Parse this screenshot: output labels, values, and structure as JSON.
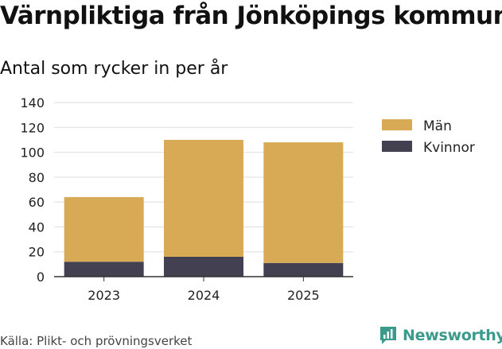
{
  "header": {
    "title": "Värnpliktiga från Jönköpings kommun",
    "subtitle": "Antal som rycker in per år"
  },
  "footer": {
    "source": "Källa: Plikt- och prövningsverket",
    "brand": "Newsworthy"
  },
  "colors": {
    "man": "#d9aa56",
    "kvinnor": "#434052",
    "grid": "#dedede",
    "axis": "#333333",
    "brand": "#3a9a8c"
  },
  "chart_data": {
    "type": "bar",
    "stacked": true,
    "categories": [
      "2023",
      "2024",
      "2025"
    ],
    "series": [
      {
        "name": "Kvinnor",
        "values": [
          12,
          16,
          11
        ]
      },
      {
        "name": "Män",
        "values": [
          52,
          94,
          97
        ]
      }
    ],
    "ylim": [
      0,
      140
    ],
    "yticks": [
      "0",
      "20",
      "40",
      "60",
      "80",
      "100",
      "120",
      "140"
    ],
    "grid": true,
    "legend": {
      "position": "right",
      "items": [
        "Män",
        "Kvinnor"
      ]
    }
  }
}
